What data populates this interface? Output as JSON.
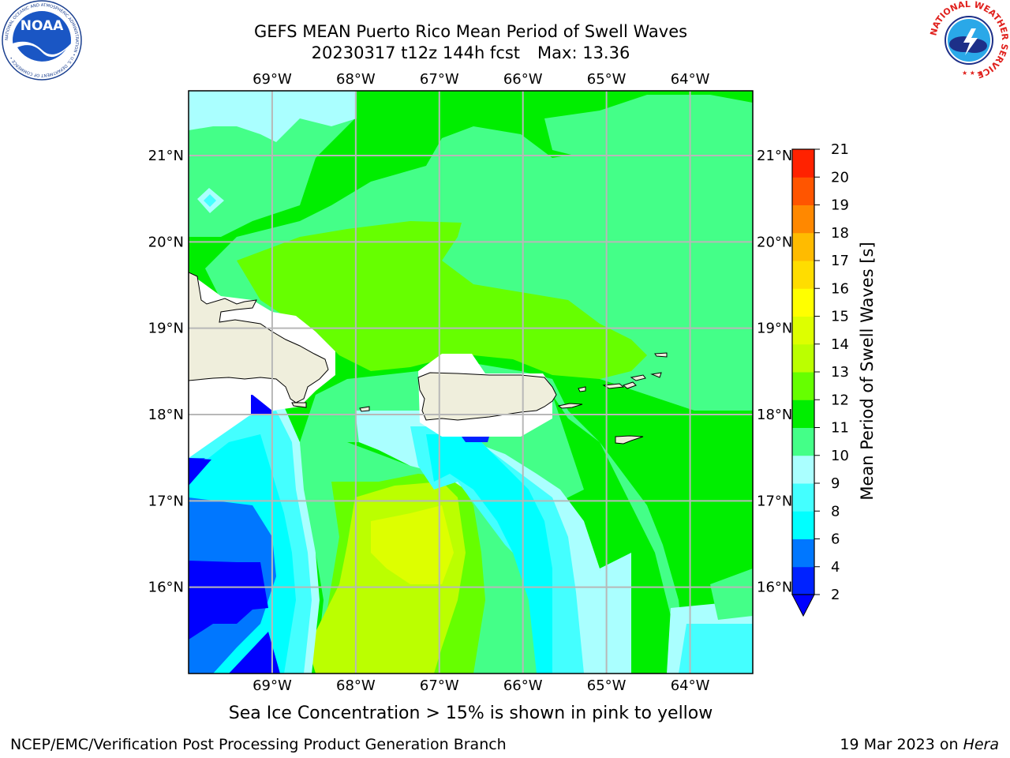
{
  "header": {
    "title_line1": "GEFS MEAN Puerto Rico Mean Period of Swell Waves",
    "title_date": "20230317 t12z 144h fcst",
    "title_max": "Max: 13.36",
    "noaa_logo_text": "NOAA",
    "noaa_ring_text": "NATIONAL OCEANIC AND ATMOSPHERIC ADMINISTRATION • U.S. DEPARTMENT OF COMMERCE •",
    "nws_ring_text": "NATIONAL WEATHER SERVICE"
  },
  "map": {
    "lon_labels": [
      "69°W",
      "68°W",
      "67°W",
      "66°W",
      "65°W",
      "64°W"
    ],
    "lat_labels": [
      "21°N",
      "20°N",
      "19°N",
      "18°N",
      "17°N",
      "16°N"
    ],
    "lon_values": [
      -69,
      -68,
      -67,
      -66,
      -65,
      -64
    ],
    "lat_values": [
      21,
      20,
      19,
      18,
      17,
      16
    ],
    "lon_range": [
      -70,
      -63.25
    ],
    "lat_range": [
      15,
      21.75
    ],
    "grid": true,
    "land_color": "#efeedc",
    "coast_color": "#000000"
  },
  "colorbar": {
    "label": "Mean Period of Swell Waves [s]",
    "ticks": [
      "21",
      "20",
      "19",
      "18",
      "17",
      "16",
      "15",
      "14",
      "13",
      "12",
      "11",
      "10",
      "9",
      "8",
      "6",
      "4",
      "2"
    ],
    "levels": [
      2,
      4,
      6,
      8,
      9,
      10,
      11,
      12,
      13,
      14,
      15,
      16,
      17,
      18,
      19,
      20,
      21
    ],
    "colors": [
      "#0022ff",
      "#0077ff",
      "#00ffff",
      "#44ffff",
      "#aaffff",
      "#44ff88",
      "#00ee00",
      "#66ff00",
      "#bbff00",
      "#ddff00",
      "#ffff00",
      "#ffdd00",
      "#ffbb00",
      "#ff8800",
      "#ff5500",
      "#ff2200",
      "#ff0000"
    ],
    "under_color": "#0000ff"
  },
  "chart_data": {
    "type": "heatmap",
    "variable": "Mean Period of Swell Waves [s]",
    "max": 13.36,
    "x_range_lon": [
      -70,
      -63.25
    ],
    "y_range_lat": [
      15,
      21.75
    ]
  },
  "subtitle": "Sea Ice Concentration > 15% is shown in pink to yellow",
  "footer": {
    "left": "NCEP/EMC/Verification Post Processing Product Generation Branch",
    "right_prefix": "19 Mar 2023 on ",
    "right_host": "Hera"
  }
}
